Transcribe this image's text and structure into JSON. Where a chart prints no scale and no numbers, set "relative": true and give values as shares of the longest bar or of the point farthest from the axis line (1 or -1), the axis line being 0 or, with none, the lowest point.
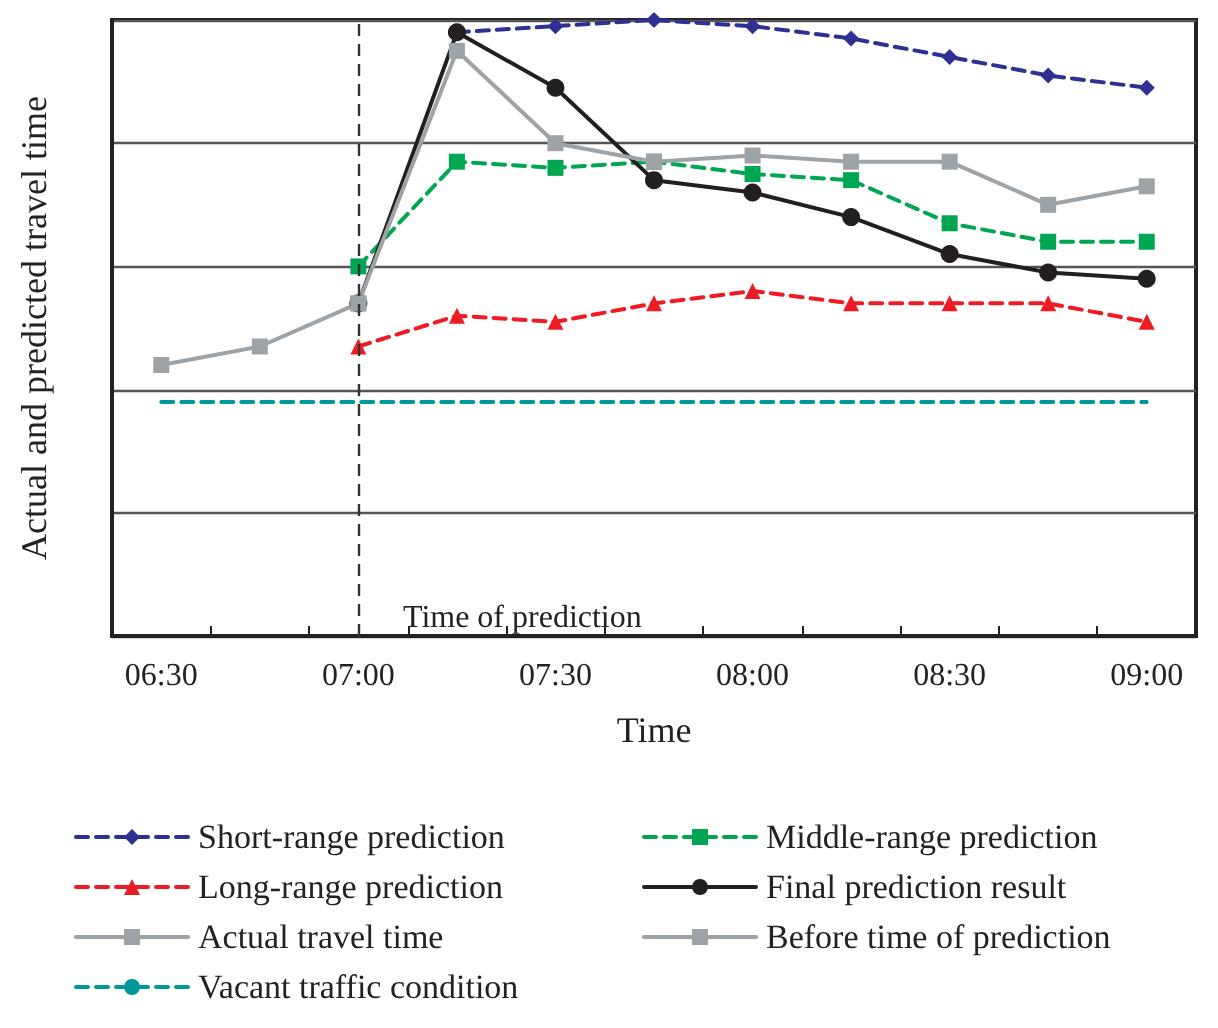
{
  "chart_data": {
    "type": "line",
    "xlabel": "Time",
    "ylabel": "Actual and predicted travel time",
    "relative": true,
    "grid": "y",
    "legend": "bottom",
    "categories": [
      "06:30",
      null,
      "07:00",
      null,
      "07:30",
      null,
      "08:00",
      null,
      "08:30",
      null,
      "09:00"
    ],
    "series": [
      {
        "name": "Short-range prediction",
        "color": "#2e3192",
        "marker": "diamond",
        "line_style": "dashed",
        "values": [
          null,
          null,
          null,
          0.98,
          0.99,
          1,
          0.99,
          0.97,
          0.94,
          0.91,
          0.89
        ]
      },
      {
        "name": "Middle-range prediction",
        "color": "#00a651",
        "marker": "square",
        "line_style": "dashed",
        "values": [
          null,
          null,
          0.6,
          0.77,
          0.76,
          0.77,
          0.75,
          0.74,
          0.67,
          0.64,
          0.64
        ]
      },
      {
        "name": "Long-range prediction",
        "color": "#ed1c24",
        "marker": "triangle",
        "line_style": "dashed",
        "values": [
          null,
          null,
          0.47,
          0.52,
          0.51,
          0.54,
          0.56,
          0.54,
          0.54,
          0.54,
          0.51
        ]
      },
      {
        "name": "Final prediction result",
        "color": "#231f20",
        "marker": "circle",
        "line_style": "solid",
        "values": [
          null,
          null,
          0.54,
          0.98,
          0.89,
          0.74,
          0.72,
          0.68,
          0.62,
          0.59,
          0.58
        ]
      },
      {
        "name": "Actual travel time",
        "color": "#9ea3a8",
        "marker": "square",
        "line_style": "solid",
        "values": [
          null,
          null,
          0.54,
          0.95,
          0.8,
          0.77,
          0.78,
          0.77,
          0.77,
          0.7,
          0.73
        ]
      },
      {
        "name": "Before time of prediction",
        "color": "#9ea3a8",
        "marker": "square",
        "line_style": "solid",
        "values": [
          0.44,
          0.47,
          0.54,
          null,
          null,
          null,
          null,
          null,
          null,
          null,
          null
        ]
      },
      {
        "name": "Vacant traffic condition",
        "color": "#00979d",
        "marker": "none",
        "line_style": "dashed",
        "values": [
          0.38,
          0.38,
          0.38,
          0.38,
          0.38,
          0.38,
          0.38,
          0.38,
          0.38,
          0.38,
          0.38
        ]
      }
    ],
    "ref_lines": [
      {
        "axis": "x",
        "value": "07:00",
        "label": "Time of prediction",
        "color": "#333333",
        "line_style": "dashed"
      }
    ]
  }
}
